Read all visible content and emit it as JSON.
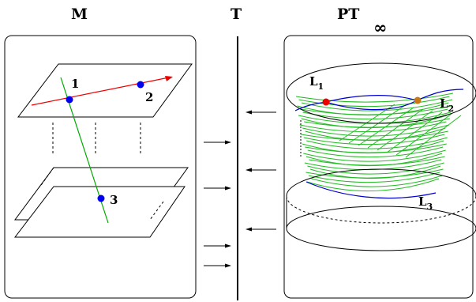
{
  "headers": {
    "left": "M",
    "middle": "T",
    "right_main": "PT",
    "right_sub": "∞"
  },
  "points": [
    {
      "label": "1",
      "color": "#0000ee"
    },
    {
      "label": "2",
      "color": "#0000ee"
    },
    {
      "label": "3",
      "color": "#0000ee"
    }
  ],
  "curves": [
    {
      "label_main": "L",
      "label_sub": "1"
    },
    {
      "label_main": "L",
      "label_sub": "2"
    },
    {
      "label_main": "L",
      "label_sub": "3"
    }
  ],
  "colors": {
    "red_line": "#ee0000",
    "green_line": "#00aa00",
    "blue_curve": "#0000cc",
    "red_point": "#ee0000",
    "orange_point": "#c87814",
    "fiber_green": "#22bb22"
  }
}
